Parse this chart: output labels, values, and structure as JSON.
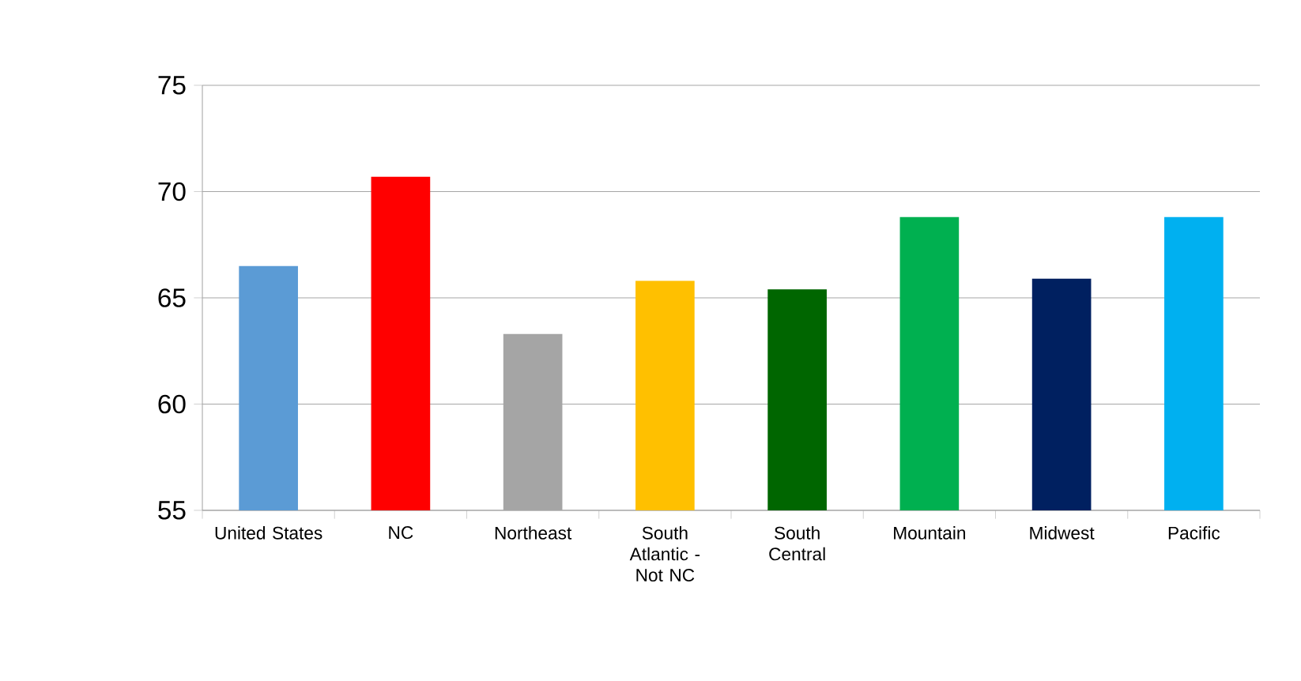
{
  "chart_data": {
    "type": "bar",
    "categories": [
      "United States",
      "NC",
      "Northeast",
      "South Atlantic - Not NC",
      "South Central",
      "Mountain",
      "Midwest",
      "Pacific"
    ],
    "values": [
      66.5,
      70.7,
      63.3,
      65.8,
      65.4,
      68.8,
      65.9,
      68.8
    ],
    "colors": [
      "#5b9bd5",
      "#ff0000",
      "#a5a5a5",
      "#ffc000",
      "#006600",
      "#00b050",
      "#002060",
      "#00b0f0"
    ],
    "ylim": [
      55,
      75
    ],
    "yticks": [
      55,
      60,
      65,
      70,
      75
    ],
    "grid": "y"
  }
}
